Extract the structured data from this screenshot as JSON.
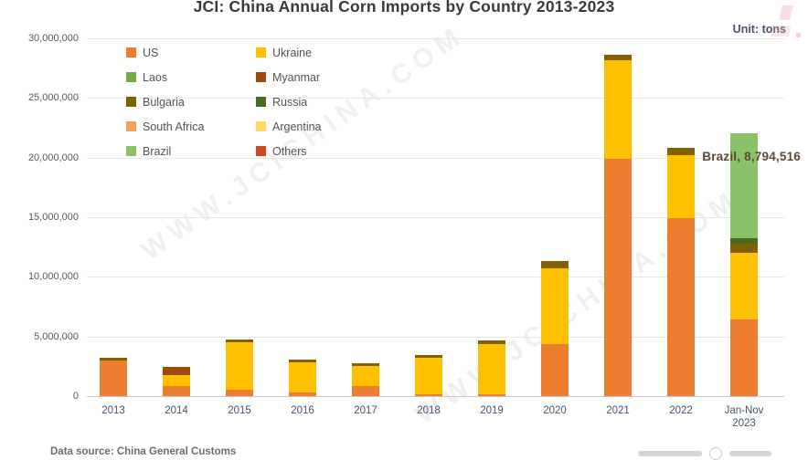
{
  "title": "JCI: China Annual Corn Imports by Country 2013-2023",
  "unit_label": "Unit: tons",
  "watermark": {
    "text": "WWW.JCICHINA.COM"
  },
  "annotation": {
    "text": "Brazil, 8,794,516"
  },
  "footer": {
    "source": "Data source: China General Customs",
    "copyright_glyph": "c"
  },
  "axis": {
    "y_ticks": [
      {
        "label": "0",
        "value": 0
      },
      {
        "label": "5,000,000",
        "value": 5000000
      },
      {
        "label": "10,000,000",
        "value": 10000000
      },
      {
        "label": "15,000,000",
        "value": 15000000
      },
      {
        "label": "20,000,000",
        "value": 20000000
      },
      {
        "label": "25,000,000",
        "value": 25000000
      },
      {
        "label": "30,000,000",
        "value": 30000000
      }
    ]
  },
  "chart_data": {
    "type": "bar",
    "stacked": true,
    "title": "JCI: China Annual Corn Imports by Country 2013-2023",
    "unit": "tons",
    "ylabel": "",
    "xlabel": "",
    "ylim": [
      0,
      30000000
    ],
    "grid": true,
    "legend_position": "inside-top-left",
    "categories": [
      "2013",
      "2014",
      "2015",
      "2016",
      "2017",
      "2018",
      "2019",
      "2020",
      "2021",
      "2022",
      "Jan-Nov 2023"
    ],
    "series": [
      {
        "name": "US",
        "color": "#ED7D31",
        "values": [
          2950000,
          850000,
          550000,
          300000,
          850000,
          150000,
          150000,
          4350000,
          19900000,
          14950000,
          6400000
        ]
      },
      {
        "name": "Ukraine",
        "color": "#FFC000",
        "values": [
          0,
          900000,
          3950000,
          2550000,
          1700000,
          3100000,
          4200000,
          6400000,
          8250000,
          5250000,
          5650000
        ]
      },
      {
        "name": "Laos",
        "color": "#70AD47",
        "values": [
          0,
          0,
          0,
          0,
          0,
          0,
          0,
          0,
          0,
          0,
          0
        ]
      },
      {
        "name": "Myanmar",
        "color": "#9C4A0B",
        "values": [
          0,
          700000,
          0,
          0,
          0,
          0,
          0,
          0,
          0,
          0,
          0
        ]
      },
      {
        "name": "Bulgaria",
        "color": "#806000",
        "values": [
          250000,
          0,
          250000,
          200000,
          200000,
          200000,
          300000,
          550000,
          500000,
          600000,
          750000
        ]
      },
      {
        "name": "Russia",
        "color": "#4A6A23",
        "values": [
          0,
          0,
          0,
          0,
          0,
          0,
          0,
          0,
          0,
          0,
          450000
        ]
      },
      {
        "name": "South Africa",
        "color": "#F2A15C",
        "values": [
          0,
          0,
          0,
          0,
          0,
          0,
          0,
          0,
          0,
          0,
          0
        ]
      },
      {
        "name": "Argentina",
        "color": "#FFD966",
        "values": [
          0,
          0,
          0,
          0,
          0,
          0,
          0,
          0,
          0,
          0,
          0
        ]
      },
      {
        "name": "Brazil",
        "color": "#8BC168",
        "values": [
          0,
          0,
          0,
          0,
          0,
          0,
          0,
          0,
          0,
          0,
          8794516
        ]
      },
      {
        "name": "Others",
        "color": "#CC4B25",
        "values": [
          0,
          0,
          0,
          0,
          0,
          0,
          0,
          0,
          0,
          0,
          0
        ]
      }
    ],
    "annotations": [
      {
        "target_category": "Jan-Nov 2023",
        "target_series": "Brazil",
        "text": "Brazil, 8,794,516"
      }
    ]
  }
}
